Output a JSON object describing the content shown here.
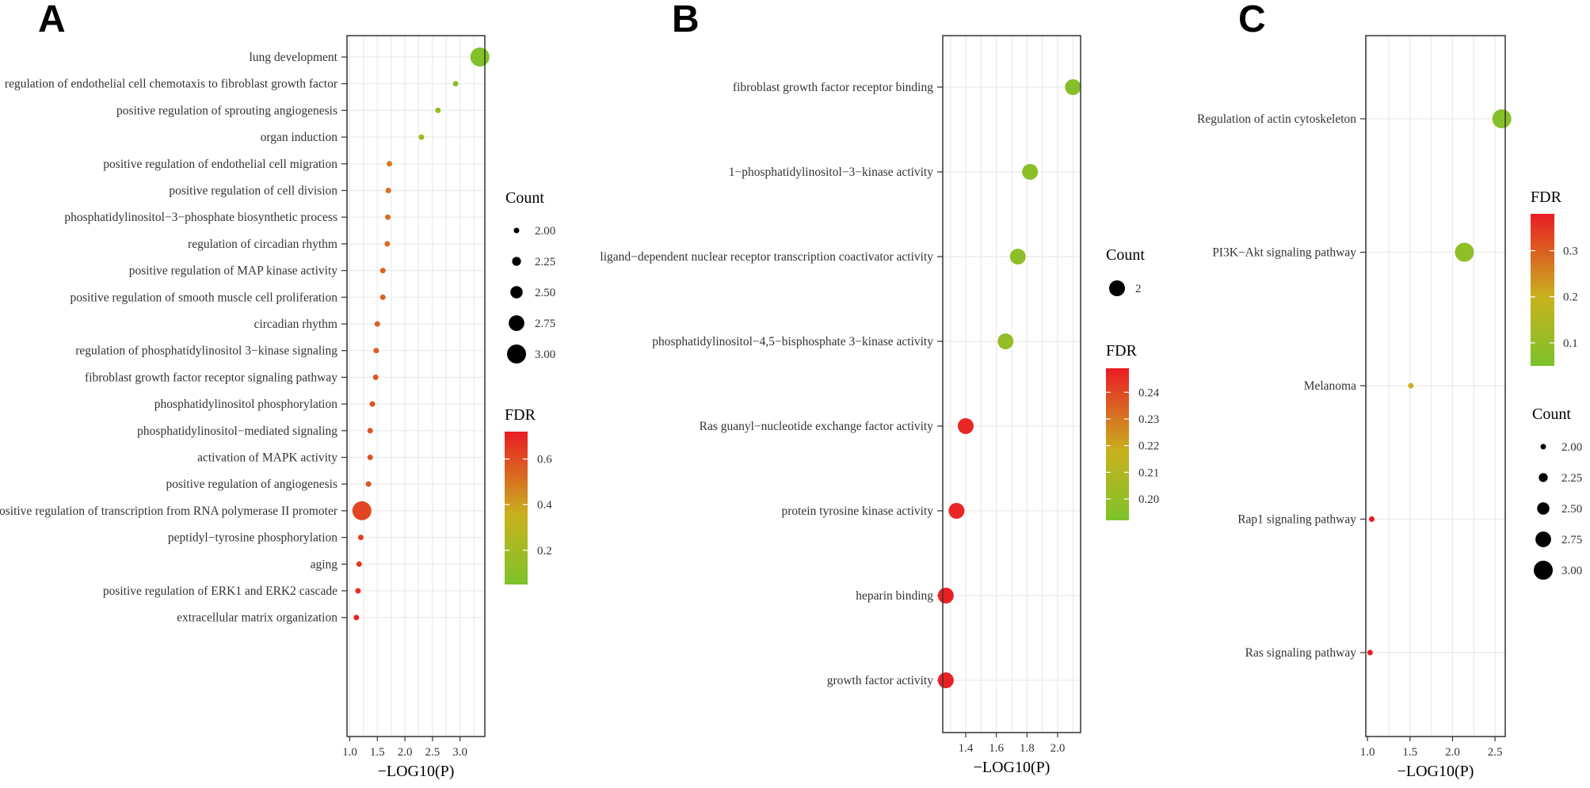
{
  "panels": [
    {
      "letter": "A",
      "chart_data": {
        "type": "scatter",
        "title": "",
        "xlabel": "−LOG10(P)",
        "ylabel": "",
        "xlim": [
          0.95,
          3.45
        ],
        "x_ticks": [
          1.0,
          1.5,
          2.0,
          2.5,
          3.0
        ],
        "x_tick_labels": [
          "1.0",
          "1.5",
          "2.0",
          "2.5",
          "3.0"
        ],
        "categories": [
          "lung development",
          "regulation of endothelial cell chemotaxis to fibroblast growth factor",
          "positive regulation of sprouting angiogenesis",
          "organ induction",
          "positive regulation of endothelial cell migration",
          "positive regulation of cell division",
          "phosphatidylinositol−3−phosphate biosynthetic process",
          "regulation of circadian rhythm",
          "positive regulation of MAP kinase activity",
          "positive regulation of smooth muscle cell proliferation",
          "circadian rhythm",
          "regulation of phosphatidylinositol 3−kinase signaling",
          "fibroblast growth factor receptor signaling pathway",
          "phosphatidylinositol phosphorylation",
          "phosphatidylinositol−mediated signaling",
          "activation of MAPK activity",
          "positive regulation of angiogenesis",
          "positive regulation of transcription from RNA polymerase II promoter",
          "peptidyl−tyrosine phosphorylation",
          "aging",
          "positive regulation of ERK1 and ERK2 cascade",
          "extracellular matrix organization"
        ],
        "x": [
          3.36,
          2.92,
          2.6,
          2.3,
          1.72,
          1.7,
          1.69,
          1.68,
          1.6,
          1.6,
          1.5,
          1.48,
          1.47,
          1.41,
          1.37,
          1.37,
          1.34,
          1.22,
          1.2,
          1.17,
          1.15,
          1.12
        ],
        "count": [
          3,
          2,
          2,
          2,
          2,
          2,
          2,
          2,
          2,
          2,
          2,
          2,
          2,
          2,
          2,
          2,
          2,
          3,
          2,
          2,
          2,
          2
        ],
        "fdr": [
          0.07,
          0.1,
          0.14,
          0.18,
          0.5,
          0.51,
          0.52,
          0.52,
          0.55,
          0.55,
          0.56,
          0.56,
          0.57,
          0.58,
          0.58,
          0.58,
          0.59,
          0.62,
          0.64,
          0.66,
          0.68,
          0.7
        ],
        "size_legend": {
          "title": "Count",
          "values": [
            2.0,
            2.25,
            2.5,
            2.75,
            3.0
          ],
          "labels": [
            "2.00",
            "2.25",
            "2.50",
            "2.75",
            "3.00"
          ]
        },
        "color_legend": {
          "title": "FDR",
          "min": 0.05,
          "max": 0.72,
          "ticks": [
            0.2,
            0.4,
            0.6
          ],
          "tick_labels": [
            "0.2",
            "0.4",
            "0.6"
          ]
        }
      }
    },
    {
      "letter": "B",
      "chart_data": {
        "type": "scatter",
        "title": "",
        "xlabel": "−LOG10(P)",
        "ylabel": "",
        "xlim": [
          1.25,
          2.15
        ],
        "x_ticks": [
          1.4,
          1.6,
          1.8,
          2.0
        ],
        "x_tick_labels": [
          "1.4",
          "1.6",
          "1.8",
          "2.0"
        ],
        "categories": [
          "fibroblast growth factor receptor binding",
          "1−phosphatidylinositol−3−kinase activity",
          "ligand−dependent nuclear receptor transcription coactivator activity",
          "phosphatidylinositol−4,5−bisphosphate 3−kinase activity",
          "Ras guanyl−nucleotide exchange factor activity",
          "protein tyrosine kinase activity",
          "heparin binding",
          "growth factor activity"
        ],
        "x": [
          2.1,
          1.82,
          1.74,
          1.66,
          1.4,
          1.34,
          1.27,
          1.27
        ],
        "count": [
          2,
          2,
          2,
          2,
          2,
          2,
          2,
          2
        ],
        "fdr": [
          0.195,
          0.197,
          0.198,
          0.2,
          0.247,
          0.247,
          0.248,
          0.248
        ],
        "size_legend": {
          "title": "Count",
          "values": [
            2
          ],
          "labels": [
            "2"
          ]
        },
        "color_legend": {
          "title": "FDR",
          "min": 0.192,
          "max": 0.249,
          "ticks": [
            0.2,
            0.21,
            0.22,
            0.23,
            0.24
          ],
          "tick_labels": [
            "0.20",
            "0.21",
            "0.22",
            "0.23",
            "0.24"
          ]
        }
      }
    },
    {
      "letter": "C",
      "chart_data": {
        "type": "scatter",
        "title": "",
        "xlabel": "−LOG10(P)",
        "ylabel": "",
        "xlim": [
          0.98,
          2.62
        ],
        "x_ticks": [
          1.0,
          1.5,
          2.0,
          2.5
        ],
        "x_tick_labels": [
          "1.0",
          "1.5",
          "2.0",
          "2.5"
        ],
        "categories": [
          "Regulation of actin cytoskeleton",
          "PI3K−Akt signaling pathway",
          "Melanoma",
          "Rap1 signaling pathway",
          "Ras signaling pathway"
        ],
        "x": [
          2.58,
          2.14,
          1.51,
          1.05,
          1.03
        ],
        "count": [
          3,
          3,
          2,
          2,
          2
        ],
        "fdr": [
          0.07,
          0.09,
          0.2,
          0.38,
          0.38
        ],
        "size_legend": {
          "title": "Count",
          "values": [
            2.0,
            2.25,
            2.5,
            2.75,
            3.0
          ],
          "labels": [
            "2.00",
            "2.25",
            "2.50",
            "2.75",
            "3.00"
          ]
        },
        "color_legend": {
          "title": "FDR",
          "min": 0.05,
          "max": 0.38,
          "ticks": [
            0.1,
            0.2,
            0.3
          ],
          "tick_labels": [
            "0.1",
            "0.2",
            "0.3"
          ]
        }
      }
    }
  ]
}
